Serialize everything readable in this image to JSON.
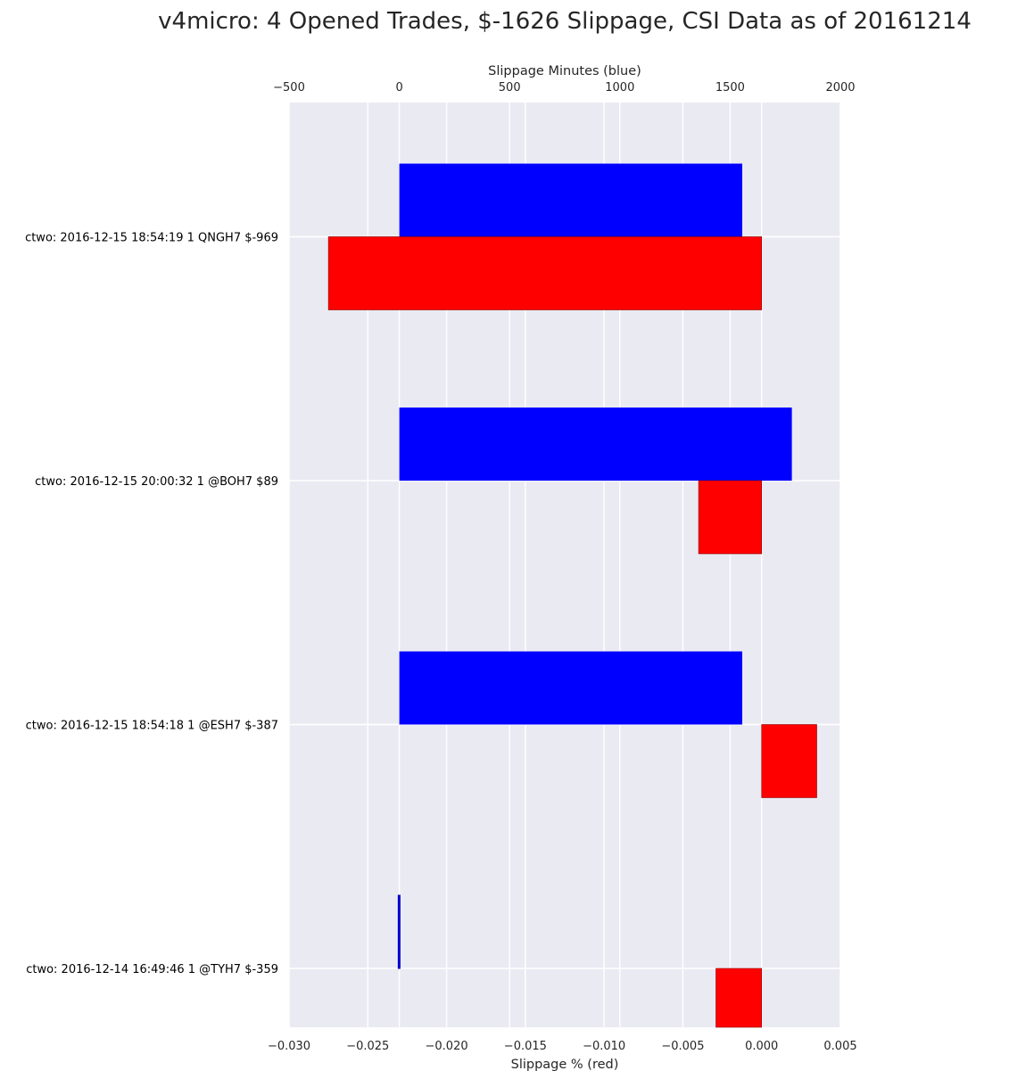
{
  "chart_data": {
    "type": "bar",
    "orientation": "horizontal",
    "title": "v4micro: 4 Opened Trades, $-1626 Slippage, CSI Data as of 20161214",
    "categories": [
      "ctwo: 2016-12-15 18:54:19 1 QNGH7 $-969",
      "ctwo: 2016-12-15 20:00:32 1 @BOH7 $89",
      "ctwo: 2016-12-15 18:54:18 1 @ESH7 $-387",
      "ctwo: 2016-12-14 16:49:46 1 @TYH7 $-359"
    ],
    "series": [
      {
        "name": "Slippage Minutes (blue)",
        "axis": "top",
        "color": "#0000ff",
        "values": [
          1555,
          1780,
          1555,
          -5
        ]
      },
      {
        "name": "Slippage % (red)",
        "axis": "bottom",
        "color": "#ff0000",
        "values": [
          -0.0275,
          -0.004,
          0.0035,
          -0.0029
        ]
      }
    ],
    "x_top": {
      "label": "Slippage Minutes (blue)",
      "lim": [
        -500,
        2000
      ],
      "ticks": [
        -500,
        0,
        500,
        1000,
        1500,
        2000
      ],
      "tick_labels": [
        "−500",
        "0",
        "500",
        "1000",
        "1500",
        "2000"
      ]
    },
    "x_bottom": {
      "label": "Slippage % (red)",
      "lim": [
        -0.03,
        0.005
      ],
      "ticks": [
        -0.03,
        -0.025,
        -0.02,
        -0.015,
        -0.01,
        -0.005,
        0.0,
        0.005
      ],
      "tick_labels": [
        "−0.030",
        "−0.025",
        "−0.020",
        "−0.015",
        "−0.010",
        "−0.005",
        "0.000",
        "0.005"
      ]
    },
    "grid": true,
    "background": "#eaeaf2",
    "grid_color": "#ffffff"
  }
}
